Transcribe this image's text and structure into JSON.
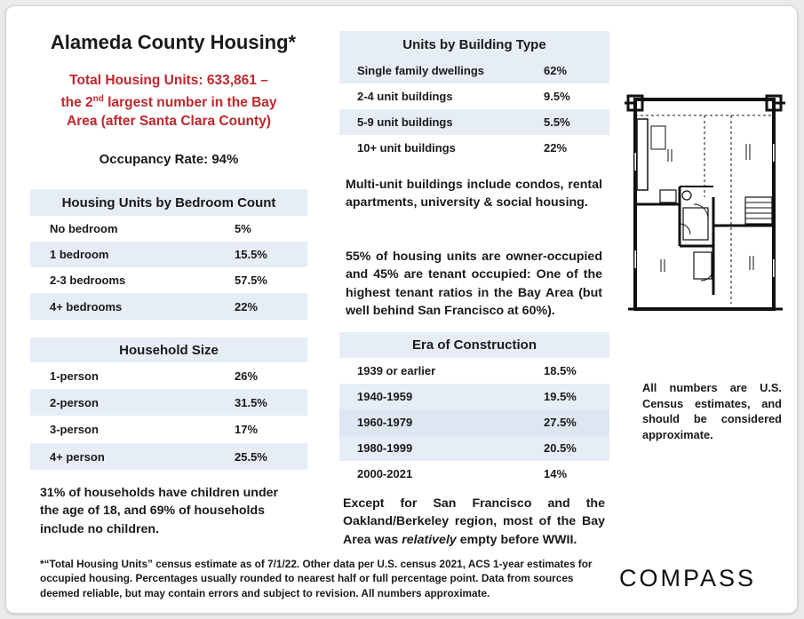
{
  "title": "Alameda County Housing*",
  "total": {
    "line1": "Total Housing Units: 633,861 –",
    "line2_pre": "the 2",
    "line2_sup": "nd",
    "line2_post": " largest number in the Bay",
    "line3": "Area (after Santa Clara County)"
  },
  "occupancy": "Occupancy Rate:  94%",
  "bedrooms": {
    "title": "Housing Units by Bedroom Count",
    "rows": [
      {
        "label": "No bedroom",
        "value": "5%"
      },
      {
        "label": "1 bedroom",
        "value": "15.5%"
      },
      {
        "label": "2-3 bedrooms",
        "value": "57.5%"
      },
      {
        "label": "4+ bedrooms",
        "value": "22%"
      }
    ]
  },
  "household": {
    "title": "Household Size",
    "rows": [
      {
        "label": "1-person",
        "value": "26%"
      },
      {
        "label": "2-person",
        "value": "31.5%"
      },
      {
        "label": "3-person",
        "value": "17%"
      },
      {
        "label": "4+ person",
        "value": "25.5%"
      }
    ]
  },
  "children_text": "31% of households have children under the age of 18, and 69% of households include no children.",
  "building": {
    "title": "Units by Building Type",
    "rows": [
      {
        "label": "Single family dwellings",
        "value": "62%"
      },
      {
        "label": "2-4 unit buildings",
        "value": "9.5%"
      },
      {
        "label": "5-9 unit buildings",
        "value": "5.5%"
      },
      {
        "label": "10+ unit buildings",
        "value": "22%"
      }
    ]
  },
  "multi_unit_text": "Multi-unit buildings include condos, rental apartments, university & social housing.",
  "owner_text": "55% of housing units are owner-occupied and 45% are tenant occupied: One of the highest tenant ratios in the Bay Area (but well behind San Francisco at 60%).",
  "era": {
    "title": "Era of Construction",
    "rows": [
      {
        "label": "1939 or earlier",
        "value": "18.5%"
      },
      {
        "label": "1940-1959",
        "value": "19.5%"
      },
      {
        "label": "1960-1979",
        "value": "27.5%"
      },
      {
        "label": "1980-1999",
        "value": "20.5%"
      },
      {
        "label": "2000-2021",
        "value": "14%"
      }
    ]
  },
  "sf_text_pre": "Except for San Francisco and the Oakland/Berkeley region, most of the Bay Area was ",
  "sf_text_em": "relatively",
  "sf_text_post": " empty before WWII.",
  "census_note": "All numbers are U.S. Census estimates, and should be considered approximate.",
  "footnote": "*“Total Housing Units” census estimate as of 7/1/22. Other data per U.S. census 2021, ACS 1-year estimates for occupied housing. Percentages usually rounded to nearest half or full percentage point. Data from sources deemed reliable, but may contain errors and subject to revision. All numbers approximate.",
  "logo": "COMPASS",
  "colors": {
    "accent_red": "#c0272d",
    "table_blue": "#e6edf6"
  }
}
